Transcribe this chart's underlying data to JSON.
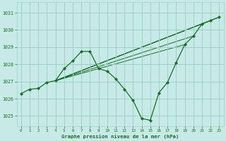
{
  "background_color": "#c8eae6",
  "grid_color": "#9dcfca",
  "line_color": "#1a6b2a",
  "xlabel": "Graphe pression niveau de la mer (hPa)",
  "xlim": [
    -0.5,
    23.5
  ],
  "ylim": [
    1024.4,
    1031.6
  ],
  "yticks": [
    1025,
    1026,
    1027,
    1028,
    1029,
    1030,
    1031
  ],
  "xticks": [
    0,
    1,
    2,
    3,
    4,
    5,
    6,
    7,
    8,
    9,
    10,
    11,
    12,
    13,
    14,
    15,
    16,
    17,
    18,
    19,
    20,
    21,
    22,
    23
  ],
  "main_line": {
    "x": [
      0,
      1,
      2,
      3,
      4,
      5,
      6,
      7,
      8,
      9,
      10,
      11,
      12,
      13,
      14,
      15,
      16,
      17,
      18,
      19,
      20,
      21,
      22,
      23
    ],
    "y": [
      1026.3,
      1026.55,
      1026.6,
      1026.95,
      1027.05,
      1027.75,
      1028.2,
      1028.75,
      1028.75,
      1027.75,
      1027.6,
      1027.15,
      1026.55,
      1025.9,
      1024.85,
      1024.75,
      1026.35,
      1026.95,
      1028.1,
      1029.15,
      1029.65,
      1030.35,
      1030.55,
      1030.75
    ]
  },
  "forecast_lines": [
    {
      "x": [
        4,
        23
      ],
      "y": [
        1027.05,
        1030.75
      ]
    },
    {
      "x": [
        4,
        22
      ],
      "y": [
        1027.05,
        1030.55
      ]
    },
    {
      "x": [
        4,
        21
      ],
      "y": [
        1027.05,
        1030.35
      ]
    },
    {
      "x": [
        4,
        20
      ],
      "y": [
        1027.05,
        1029.65
      ]
    },
    {
      "x": [
        4,
        19
      ],
      "y": [
        1027.05,
        1029.15
      ]
    }
  ]
}
